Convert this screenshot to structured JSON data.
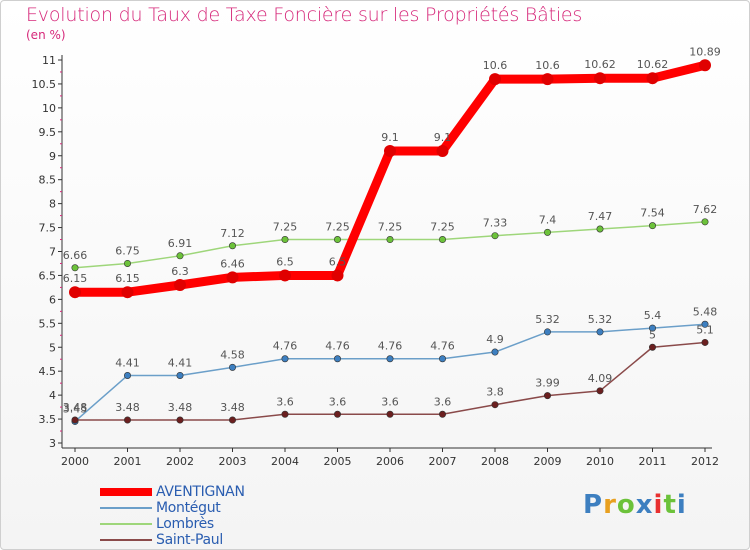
{
  "title": "Evolution du Taux de Taxe Foncière sur les Propriétés Bâties",
  "unit": "(en %)",
  "logo": "Proxiti",
  "colors": {
    "title": "#d6287a",
    "axis": "#333333",
    "legend_text": "#2a5db0"
  },
  "chart_data": {
    "type": "line",
    "title": "Evolution du Taux de Taxe Foncière sur les Propriétés Bâties",
    "ylabel": "(en %)",
    "xlabel": "",
    "categories": [
      "2000",
      "2001",
      "2002",
      "2003",
      "2004",
      "2005",
      "2006",
      "2007",
      "2008",
      "2009",
      "2010",
      "2011",
      "2012"
    ],
    "ylim": [
      3,
      11
    ],
    "yticks": [
      "3",
      "3.5",
      "4",
      "4.5",
      "5",
      "5.5",
      "6",
      "6.5",
      "7",
      "7.5",
      "8",
      "8.5",
      "9",
      "9.5",
      "10",
      "10.5",
      "11"
    ],
    "series": [
      {
        "name": "AVENTIGNAN",
        "color": "#ff0000",
        "point_color": "#e00000",
        "thick": true,
        "values": [
          6.15,
          6.15,
          6.3,
          6.46,
          6.5,
          6.5,
          9.1,
          9.1,
          10.6,
          10.6,
          10.62,
          10.62,
          10.89
        ],
        "labels": [
          "6.15",
          "6.15",
          "6.3",
          "6.46",
          "6.5",
          "6.5",
          "9.1",
          "9.1",
          "10.6",
          "10.6",
          "10.62",
          "10.62",
          "10.89"
        ]
      },
      {
        "name": "Montégut",
        "color": "#6b9fc9",
        "point_color": "#3d7fc0",
        "thick": false,
        "values": [
          3.45,
          4.41,
          4.41,
          4.58,
          4.76,
          4.76,
          4.76,
          4.76,
          4.9,
          5.32,
          5.32,
          5.4,
          5.48
        ],
        "labels": [
          "3.45",
          "4.41",
          "4.41",
          "4.58",
          "4.76",
          "4.76",
          "4.76",
          "4.76",
          "4.9",
          "5.32",
          "5.32",
          "5.4",
          "5.48"
        ]
      },
      {
        "name": "Lombrès",
        "color": "#9ed67a",
        "point_color": "#6cc23a",
        "thick": false,
        "values": [
          6.66,
          6.75,
          6.91,
          7.12,
          7.25,
          7.25,
          7.25,
          7.25,
          7.33,
          7.4,
          7.47,
          7.54,
          7.62
        ],
        "labels": [
          "6.66",
          "6.75",
          "6.91",
          "7.12",
          "7.25",
          "7.25",
          "7.25",
          "7.25",
          "7.33",
          "7.4",
          "7.47",
          "7.54",
          "7.62"
        ]
      },
      {
        "name": "Saint-Paul",
        "color": "#8a4a4a",
        "point_color": "#6b1f1f",
        "thick": false,
        "values": [
          3.48,
          3.48,
          3.48,
          3.48,
          3.6,
          3.6,
          3.6,
          3.6,
          3.8,
          3.99,
          4.09,
          5,
          5.1
        ],
        "labels": [
          "3.48",
          "3.48",
          "3.48",
          "3.48",
          "3.6",
          "3.6",
          "3.6",
          "3.6",
          "3.8",
          "3.99",
          "4.09",
          "5",
          "5.1"
        ]
      }
    ],
    "legend_position": "bottom-left"
  }
}
